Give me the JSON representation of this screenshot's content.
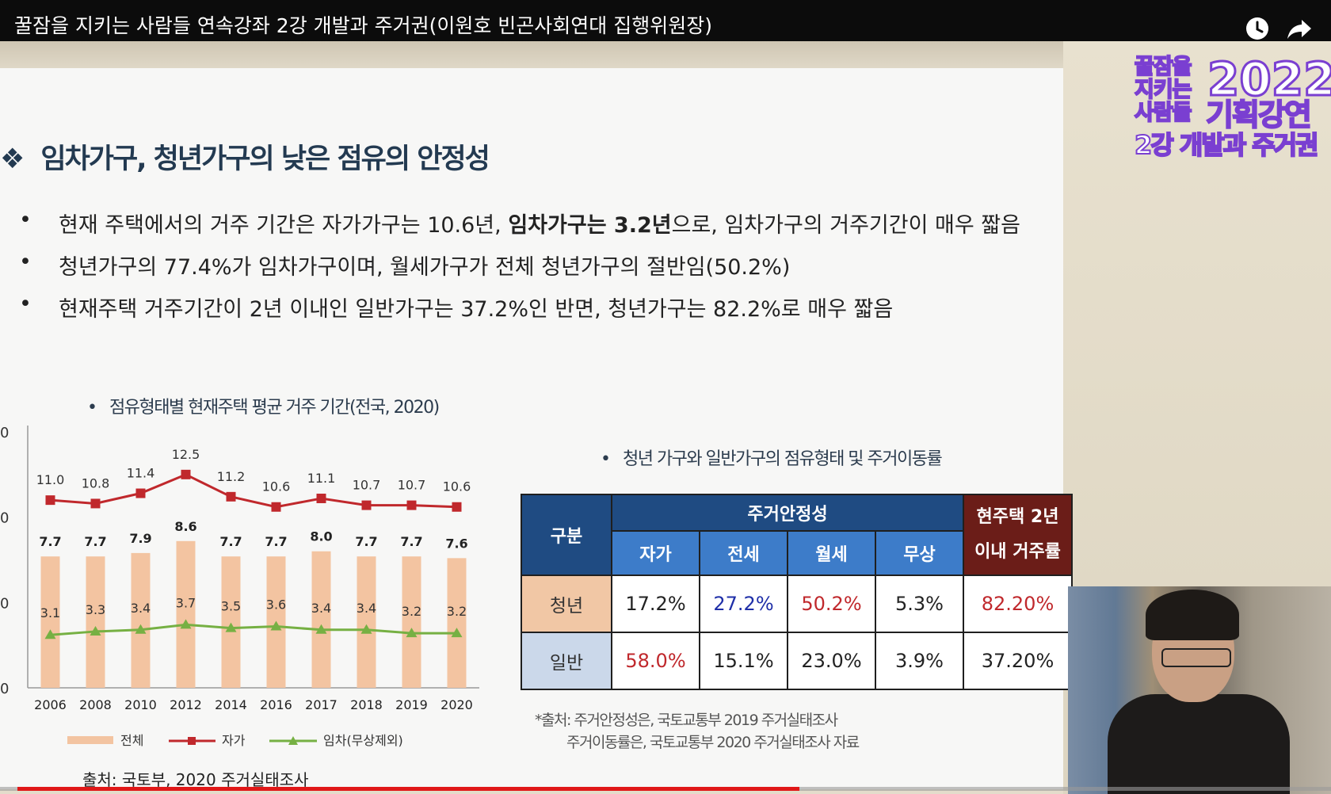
{
  "video": {
    "title": "꿀잠을 지키는 사람들 연속강좌 2강 개발과 주거권(이원호 빈곤사회연대 집행위원장)",
    "icons": [
      "clock-icon",
      "share-icon"
    ],
    "progress_fraction": 0.595
  },
  "logo": {
    "line1": "꿀잠을",
    "line2": "지키는",
    "line3": "사람들",
    "year": "2022",
    "lecture": "기획강연",
    "subtitle": "2강 개발과 주거권"
  },
  "slide": {
    "heading_marker": "❖",
    "heading": "임차가구, 청년가구의 낮은 점유의 안정성",
    "bullets": [
      {
        "pre": "현재 주택에서의 거주 기간은 자가가구는 10.6년, ",
        "bold": "임차가구는 3.2년",
        "post": "으로, 임차가구의 거주기간이 매우 짧음"
      },
      {
        "pre": " 청년가구의 77.4%가 임차가구이며, 월세가구가 전체 청년가구의 절반임(50.2%)",
        "bold": "",
        "post": ""
      },
      {
        "pre": "현재주택 거주기간이 2년 이내인 일반가구는 37.2%인 반면, 청년가구는 82.2%로 매우 짧음",
        "bold": "",
        "post": ""
      }
    ],
    "bullet_char": "•",
    "chart_subtitle": "점유형태별 현재주택 평균 거주 기간(전국, 2020)",
    "table_subtitle": "청년 가구와 일반가구의 점유형태 및 주거이동률",
    "chart_source": "출처: 국토부, 2020 주거실태조사",
    "table_source_1": "*출처: 주거안정성은, 국토교통부 2019 주거실태조사",
    "table_source_2": "주거이동률은, 국토교통부 2020 주거실태조사 자료"
  },
  "chart_data": {
    "type": "bar",
    "categories": [
      "2006",
      "2008",
      "2010",
      "2012",
      "2014",
      "2016",
      "2017",
      "2018",
      "2019",
      "2020"
    ],
    "series": [
      {
        "name": "전체",
        "kind": "bar",
        "color": "#f3c4a1",
        "values": [
          7.7,
          7.7,
          7.9,
          8.6,
          7.7,
          7.7,
          8.0,
          7.7,
          7.7,
          7.6
        ]
      },
      {
        "name": "자가",
        "kind": "line",
        "color": "#c0282c",
        "marker": "square",
        "values": [
          11.0,
          10.8,
          11.4,
          12.5,
          11.2,
          10.6,
          11.1,
          10.7,
          10.7,
          10.6
        ]
      },
      {
        "name": "임차(무상제외)",
        "kind": "line",
        "color": "#76b043",
        "marker": "triangle",
        "values": [
          3.1,
          3.3,
          3.4,
          3.7,
          3.5,
          3.6,
          3.4,
          3.4,
          3.2,
          3.2
        ]
      }
    ],
    "value_labels": {
      "전체": [
        "7.7",
        "7.7",
        "7.9",
        "8.6",
        "7.7",
        "7.7",
        "8.0",
        "7.7",
        "7.7",
        "7.6"
      ],
      "자가": [
        "11.0",
        "10.8",
        "11.4",
        "12.5",
        "11.2",
        "10.6",
        "11.1",
        "10.7",
        "10.7",
        "10.6"
      ],
      "임차(무상제외)": [
        "3.1",
        "3.3",
        "3.4",
        "3.7",
        "3.5",
        "3.6",
        "3.4",
        "3.4",
        "3.2",
        "3.2"
      ]
    },
    "y_ticks_visible": [
      "0",
      "0",
      "0",
      "0"
    ],
    "ylim": [
      0,
      15
    ],
    "legend_position": "bottom",
    "title": "",
    "xlabel": "",
    "ylabel": ""
  },
  "table": {
    "header_group": "구분",
    "header_stability": "주거안정성",
    "header_move": [
      "현주택 2년",
      "이내 거주률"
    ],
    "columns": [
      "자가",
      "전세",
      "월세",
      "무상"
    ],
    "rows": [
      {
        "label": "청년",
        "values": [
          "17.2%",
          "27.2%",
          "50.2%",
          "5.3%",
          "82.20%"
        ],
        "colors": [
          "#222222",
          "#1f2fa8",
          "#c0282c",
          "#222222",
          "#c0282c"
        ]
      },
      {
        "label": "일반",
        "values": [
          "58.0%",
          "15.1%",
          "23.0%",
          "3.9%",
          "37.20%"
        ],
        "colors": [
          "#c0282c",
          "#222222",
          "#222222",
          "#222222",
          "#222222"
        ]
      }
    ]
  }
}
